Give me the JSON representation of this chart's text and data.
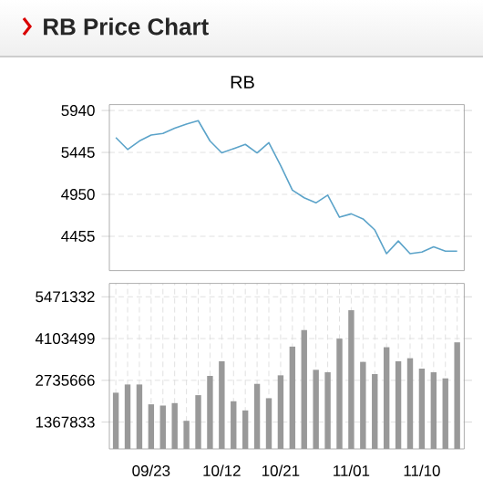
{
  "chart_data": [
    {
      "type": "line",
      "title": "RB Price Chart",
      "subtitle": "RB",
      "values": [
        5620,
        5480,
        5580,
        5650,
        5670,
        5730,
        5780,
        5820,
        5580,
        5440,
        5490,
        5540,
        5440,
        5560,
        5290,
        5000,
        4910,
        4850,
        4940,
        4680,
        4720,
        4660,
        4530,
        4250,
        4400,
        4250,
        4270,
        4330,
        4280,
        4280
      ],
      "color": "#5ba3c9",
      "ylim": [
        4050,
        6010
      ],
      "yticks": [
        4455,
        4950,
        5445,
        5940
      ],
      "grid": "y",
      "tick_labels": "y"
    },
    {
      "type": "bar",
      "categories": [
        null,
        null,
        null,
        "09/23",
        null,
        null,
        null,
        null,
        null,
        "10/12",
        null,
        null,
        null,
        null,
        "10/21",
        null,
        null,
        null,
        null,
        null,
        "11/01",
        null,
        null,
        null,
        null,
        null,
        "11/10",
        null,
        null,
        null
      ],
      "values": [
        2330000,
        2600000,
        2600000,
        1950000,
        1910000,
        1990000,
        1410000,
        2250000,
        2880000,
        3360000,
        2050000,
        1750000,
        2620000,
        2150000,
        2900000,
        3840000,
        4380000,
        3080000,
        3000000,
        4100000,
        5030000,
        3340000,
        2940000,
        3820000,
        3360000,
        3460000,
        3120000,
        3000000,
        2800000,
        3980000
      ],
      "color": "#999999",
      "ylim": [
        490000,
        5910000
      ],
      "yticks": [
        1367833,
        2735666,
        4103499,
        5471332
      ],
      "grid": true
    }
  ]
}
